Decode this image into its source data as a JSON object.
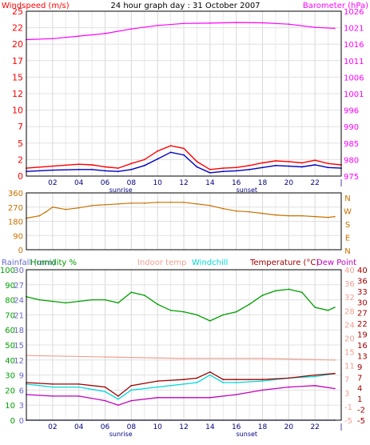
{
  "chart_data": [
    {
      "type": "line",
      "title": "24 hour graph day : 31 October 2007",
      "left_axis_title": "Windspeed (m/s)",
      "right_axis_title": "Barometer (hPa)",
      "left_ylim": [
        0,
        25
      ],
      "left_ticks": [
        "0",
        "2",
        "5",
        "7",
        "10",
        "12",
        "15",
        "17",
        "20",
        "22",
        "25"
      ],
      "right_ylim": [
        975,
        1026
      ],
      "right_ticks": [
        "975",
        "980",
        "985",
        "990",
        "996",
        "1001",
        "1006",
        "1011",
        "1016",
        "1021",
        "1026"
      ],
      "x_ticks": [
        "02",
        "04",
        "06",
        "08",
        "10",
        "12",
        "14",
        "16",
        "18",
        "20",
        "22"
      ],
      "x_annotations": [
        "sunrise",
        "sunset"
      ],
      "series": [
        {
          "axis": "left",
          "color": "#ff0000",
          "x": [
            0,
            2,
            4,
            5,
            6,
            7,
            8,
            9,
            10,
            11,
            12,
            13,
            14,
            15,
            16,
            17,
            18,
            19,
            20,
            21,
            22,
            23,
            24
          ],
          "values": [
            1.2,
            1.5,
            1.8,
            1.7,
            1.4,
            1.2,
            1.9,
            2.5,
            3.8,
            4.6,
            4.2,
            2.2,
            1.0,
            1.2,
            1.3,
            1.6,
            2.0,
            2.3,
            2.2,
            2.0,
            2.4,
            1.9,
            1.7
          ]
        },
        {
          "axis": "left",
          "color": "#0000c0",
          "x": [
            0,
            2,
            4,
            5,
            6,
            7,
            8,
            9,
            10,
            11,
            12,
            13,
            14,
            15,
            16,
            17,
            18,
            19,
            20,
            21,
            22,
            23,
            24
          ],
          "values": [
            0.7,
            0.9,
            1.0,
            1.0,
            0.8,
            0.7,
            1.0,
            1.6,
            2.6,
            3.6,
            3.2,
            1.4,
            0.5,
            0.7,
            0.8,
            1.0,
            1.3,
            1.6,
            1.5,
            1.4,
            1.7,
            1.3,
            1.2
          ]
        },
        {
          "axis": "right",
          "color": "#ff00ff",
          "x": [
            0,
            2,
            4,
            6,
            8,
            10,
            12,
            14,
            16,
            18,
            20,
            22,
            23.5
          ],
          "values": [
            1017.2,
            1017.5,
            1018.3,
            1019.1,
            1020.5,
            1021.6,
            1022.2,
            1022.3,
            1022.5,
            1022.4,
            1022.0,
            1021.0,
            1020.7
          ]
        }
      ]
    },
    {
      "type": "line",
      "left_ylim": [
        0,
        360
      ],
      "left_ticks": [
        "0",
        "90",
        "180",
        "270",
        "360"
      ],
      "right_ticks": [
        "N",
        "W",
        "S",
        "E",
        "N"
      ],
      "series": [
        {
          "name": "Wind direction",
          "color": "#c87000",
          "x": [
            0,
            1,
            1.5,
            2,
            3,
            4,
            5,
            6,
            7,
            8,
            9,
            10,
            11,
            12,
            13,
            14,
            15,
            16,
            17,
            18,
            19,
            20,
            21,
            22,
            23,
            23.5
          ],
          "values": [
            200,
            215,
            240,
            270,
            255,
            265,
            280,
            285,
            290,
            295,
            295,
            300,
            300,
            300,
            290,
            280,
            260,
            245,
            240,
            230,
            220,
            215,
            215,
            210,
            205,
            210
          ]
        }
      ]
    },
    {
      "type": "line",
      "legend": [
        "Rainfall (mm)",
        "Humidity %",
        "Indoor temp",
        "Windchill",
        "Temperature (°C)",
        "Dew Point"
      ],
      "legend_colors": [
        "#6868cc",
        "#00a000",
        "#f0a090",
        "#00d8d8",
        "#a00000",
        "#c000c0"
      ],
      "rain_ticks": [
        "0",
        "3",
        "6",
        "9",
        "12",
        "15",
        "18",
        "21",
        "24",
        "27",
        "30"
      ],
      "humidity_ticks": [
        "0",
        "10",
        "20",
        "30",
        "40",
        "50",
        "60",
        "70",
        "80",
        "90",
        "100"
      ],
      "temp_f_ticks": [
        "-5",
        "-1",
        "3",
        "7",
        "11",
        "15",
        "20",
        "24",
        "28",
        "32",
        "36",
        "40"
      ],
      "temp_c_ticks": [
        "-5",
        "-2",
        "0",
        "3",
        "6",
        "9",
        "12",
        "15",
        "18",
        "21",
        "24",
        "27",
        "30",
        "33",
        "36",
        "39",
        "40"
      ],
      "right_ticks_1": [
        "-5",
        "-1",
        "3",
        "7",
        "11",
        "15",
        "20",
        "24",
        "28",
        "32",
        "36",
        "40"
      ],
      "right_ticks_2": [
        "-5",
        "-2",
        "1",
        "4",
        "7",
        "9",
        "13",
        "16",
        "19",
        "22",
        "27",
        "30",
        "33",
        "36",
        "40"
      ],
      "x_ticks": [
        "02",
        "04",
        "06",
        "08",
        "10",
        "12",
        "14",
        "16",
        "18",
        "20",
        "22"
      ],
      "x_annotations": [
        "sunrise",
        "sunset"
      ],
      "series": [
        {
          "name": "Humidity %",
          "axis": "humidity",
          "color": "#00a000",
          "x": [
            0,
            1,
            2,
            3,
            4,
            5,
            6,
            7,
            8,
            9,
            10,
            11,
            12,
            13,
            14,
            15,
            16,
            17,
            18,
            19,
            20,
            21,
            22,
            23,
            23.5
          ],
          "values": [
            82,
            80,
            79,
            78,
            79,
            80,
            80,
            78,
            85,
            83,
            77,
            73,
            72,
            70,
            66,
            70,
            72,
            77,
            83,
            86,
            87,
            85,
            75,
            73,
            75
          ]
        },
        {
          "name": "Indoor temp",
          "axis": "humidity",
          "color": "#f0a090",
          "x": [
            0,
            6,
            12,
            18,
            23.5
          ],
          "values": [
            43,
            42,
            41,
            41,
            40
          ]
        },
        {
          "name": "Temperature (°C)",
          "axis": "humidity",
          "color": "#a00000",
          "x": [
            0,
            2,
            4,
            6,
            7,
            8,
            10,
            12,
            13,
            14,
            15,
            16,
            18,
            20,
            22,
            23.5
          ],
          "values": [
            25,
            24,
            24,
            22,
            16,
            23,
            26,
            27,
            28,
            32,
            27,
            27,
            27,
            28,
            30,
            31
          ]
        },
        {
          "name": "Windchill",
          "axis": "humidity",
          "color": "#00d8d8",
          "x": [
            0,
            2,
            4,
            6,
            7,
            8,
            10,
            12,
            13,
            14,
            15,
            16,
            18,
            20,
            22,
            23.5
          ],
          "values": [
            24,
            22,
            22,
            19,
            14,
            20,
            22,
            24,
            25,
            30,
            25,
            25,
            26,
            28,
            29,
            31
          ]
        },
        {
          "name": "Dew Point",
          "axis": "humidity",
          "color": "#c000c0",
          "x": [
            0,
            2,
            4,
            6,
            7,
            8,
            10,
            12,
            14,
            16,
            18,
            20,
            22,
            23.5
          ],
          "values": [
            17,
            16,
            16,
            13,
            10,
            13,
            15,
            15,
            15,
            17,
            20,
            22,
            23,
            21
          ]
        },
        {
          "name": "Rainfall (mm)",
          "axis": "humidity",
          "color": "#4040c0",
          "x": [
            0,
            23.5
          ],
          "values": [
            0,
            0
          ]
        }
      ]
    }
  ]
}
